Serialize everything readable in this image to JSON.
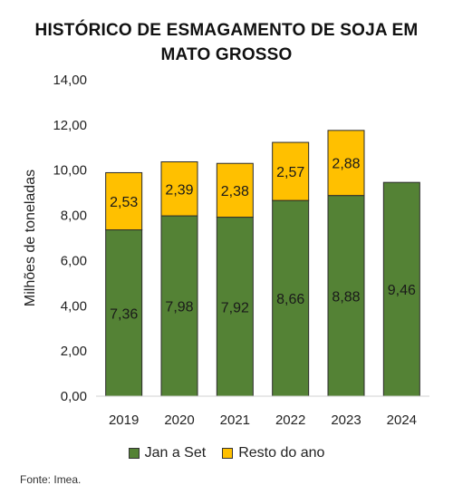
{
  "title_line1": "HISTÓRICO DE ESMAGAMENTO DE SOJA EM",
  "title_line2": "MATO GROSSO",
  "source": "Fonte: Imea.",
  "colors": {
    "jan_a_set": "#548235",
    "resto_do_ano": "#ffc000"
  },
  "chart_data": {
    "type": "bar",
    "stacked": true,
    "categories": [
      "2019",
      "2020",
      "2021",
      "2022",
      "2023",
      "2024"
    ],
    "series": [
      {
        "name": "Jan a Set",
        "values": [
          7.36,
          7.98,
          7.92,
          8.66,
          8.88,
          9.46
        ],
        "labels": [
          "7,36",
          "7,98",
          "7,92",
          "8,66",
          "8,88",
          "9,46"
        ]
      },
      {
        "name": "Resto do ano",
        "values": [
          2.53,
          2.39,
          2.38,
          2.57,
          2.88,
          null
        ],
        "labels": [
          "2,53",
          "2,39",
          "2,38",
          "2,57",
          "2,88",
          ""
        ]
      }
    ],
    "ylabel": "Milhões de toneladas",
    "ylim": [
      0,
      14
    ],
    "yticks": [
      "0,00",
      "2,00",
      "4,00",
      "6,00",
      "8,00",
      "10,00",
      "12,00",
      "14,00"
    ],
    "grid": false,
    "legend": "bottom"
  }
}
